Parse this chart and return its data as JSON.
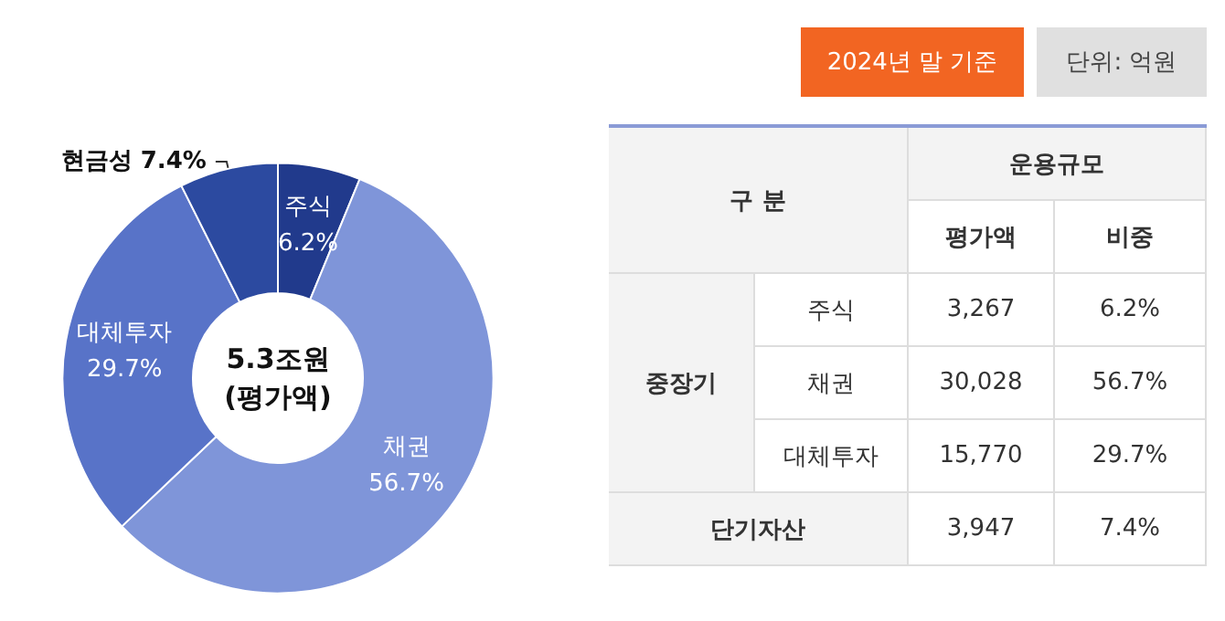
{
  "chart_data": [
    {
      "type": "donut",
      "categories": [
        "주식",
        "채권",
        "대체투자",
        "현금성"
      ],
      "values": [
        6.2,
        56.7,
        29.7,
        7.4
      ],
      "colors": [
        "#213a8c",
        "#7f95d9",
        "#5873c8",
        "#2c4aa0"
      ],
      "value_labels": [
        "6.2%",
        "56.7%",
        "29.7%",
        "7.4%"
      ],
      "annotations": [
        "5.3조원\n(평가액)"
      ]
    },
    {
      "type": "other",
      "annotations": [
        "2024년 말 기준",
        "단위: 억원",
        "구 분",
        "운용규모",
        "평가액",
        "비중",
        "중장기",
        "주식",
        "3,267",
        "6.2%",
        "채권",
        "30,028",
        "56.7%",
        "대체투자",
        "15,770",
        "29.7%",
        "단기자산",
        "3,947",
        "7.4%"
      ]
    }
  ]
}
